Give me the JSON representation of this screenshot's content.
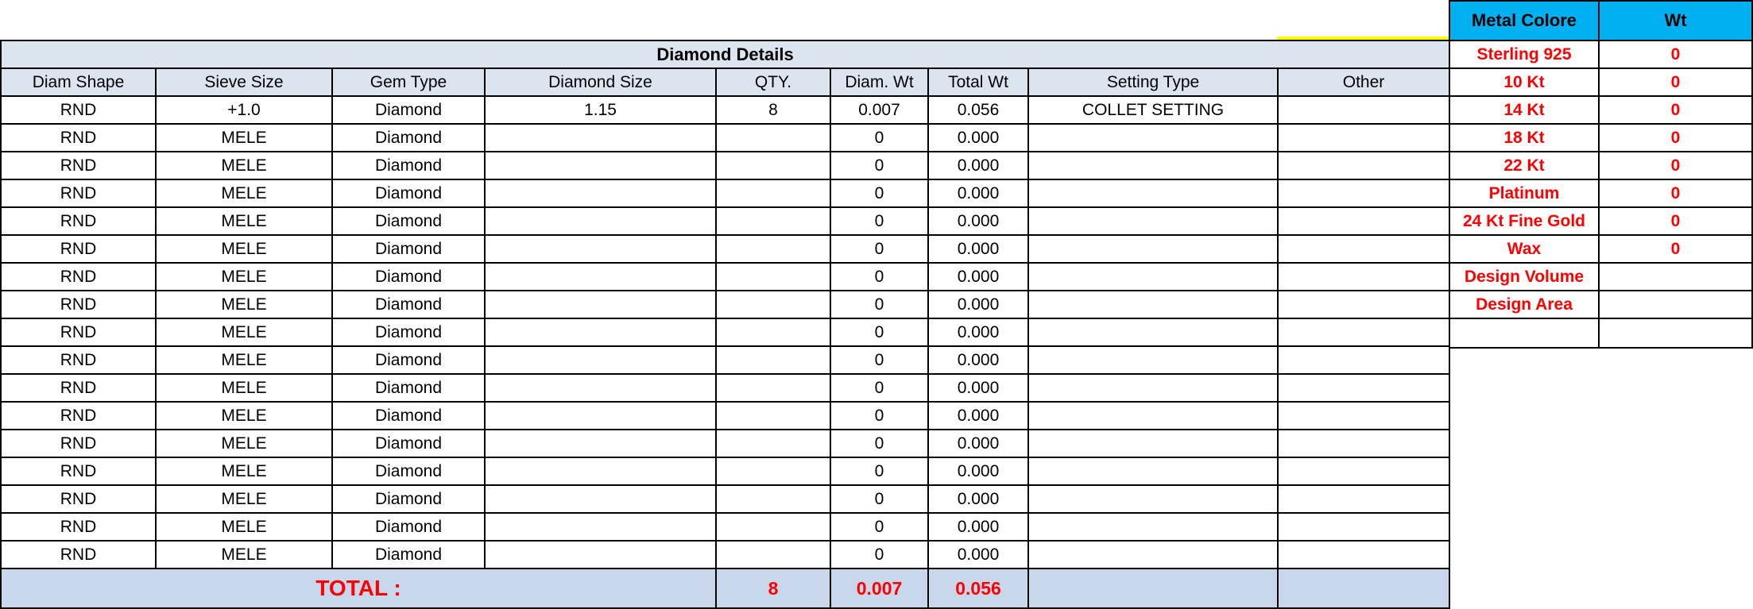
{
  "table": {
    "title": "Diamond Details",
    "columns": [
      "Diam Shape",
      "Sieve Size",
      "Gem Type",
      "Diamond Size",
      "QTY.",
      "Diam. Wt",
      "Total Wt",
      "Setting Type",
      "Other"
    ],
    "rows": [
      [
        "RND",
        "+1.0",
        "Diamond",
        "1.15",
        "8",
        "0.007",
        "0.056",
        "COLLET SETTING",
        ""
      ],
      [
        "RND",
        "MELE",
        "Diamond",
        "",
        "",
        "0",
        "0.000",
        "",
        ""
      ],
      [
        "RND",
        "MELE",
        "Diamond",
        "",
        "",
        "0",
        "0.000",
        "",
        ""
      ],
      [
        "RND",
        "MELE",
        "Diamond",
        "",
        "",
        "0",
        "0.000",
        "",
        ""
      ],
      [
        "RND",
        "MELE",
        "Diamond",
        "",
        "",
        "0",
        "0.000",
        "",
        ""
      ],
      [
        "RND",
        "MELE",
        "Diamond",
        "",
        "",
        "0",
        "0.000",
        "",
        ""
      ],
      [
        "RND",
        "MELE",
        "Diamond",
        "",
        "",
        "0",
        "0.000",
        "",
        ""
      ],
      [
        "RND",
        "MELE",
        "Diamond",
        "",
        "",
        "0",
        "0.000",
        "",
        ""
      ],
      [
        "RND",
        "MELE",
        "Diamond",
        "",
        "",
        "0",
        "0.000",
        "",
        ""
      ],
      [
        "RND",
        "MELE",
        "Diamond",
        "",
        "",
        "0",
        "0.000",
        "",
        ""
      ],
      [
        "RND",
        "MELE",
        "Diamond",
        "",
        "",
        "0",
        "0.000",
        "",
        ""
      ],
      [
        "RND",
        "MELE",
        "Diamond",
        "",
        "",
        "0",
        "0.000",
        "",
        ""
      ],
      [
        "RND",
        "MELE",
        "Diamond",
        "",
        "",
        "0",
        "0.000",
        "",
        ""
      ],
      [
        "RND",
        "MELE",
        "Diamond",
        "",
        "",
        "0",
        "0.000",
        "",
        ""
      ],
      [
        "RND",
        "MELE",
        "Diamond",
        "",
        "",
        "0",
        "0.000",
        "",
        ""
      ],
      [
        "RND",
        "MELE",
        "Diamond",
        "",
        "",
        "0",
        "0.000",
        "",
        ""
      ],
      [
        "RND",
        "MELE",
        "Diamond",
        "",
        "",
        "0",
        "0.000",
        "",
        ""
      ]
    ],
    "flag_columns": [
      1,
      5,
      6
    ],
    "total": {
      "label": "TOTAL :",
      "qty": "8",
      "diam_wt": "0.007",
      "total_wt": "0.056",
      "setting": "",
      "other": ""
    }
  },
  "metal_panel": {
    "headers": [
      "Metal Colore",
      "Wt"
    ],
    "rows": [
      [
        "Sterling 925",
        "0"
      ],
      [
        "10 Kt",
        "0"
      ],
      [
        "14 Kt",
        "0"
      ],
      [
        "18 Kt",
        "0"
      ],
      [
        "22 Kt",
        "0"
      ],
      [
        "Platinum",
        "0"
      ],
      [
        "24 Kt Fine Gold",
        "0"
      ],
      [
        "Wax",
        "0"
      ],
      [
        "Design Volume",
        ""
      ],
      [
        "Design Area",
        ""
      ],
      [
        "",
        ""
      ]
    ]
  },
  "colors": {
    "accent_cyan": "#00b0f0",
    "accent_red": "#ff0000",
    "header_row_bg": "#dce4f0",
    "total_row_bg": "#c8d7eb",
    "highlight_yellow": "#ffff00",
    "flag_green": "#1e7b34",
    "border_black": "#000000"
  }
}
